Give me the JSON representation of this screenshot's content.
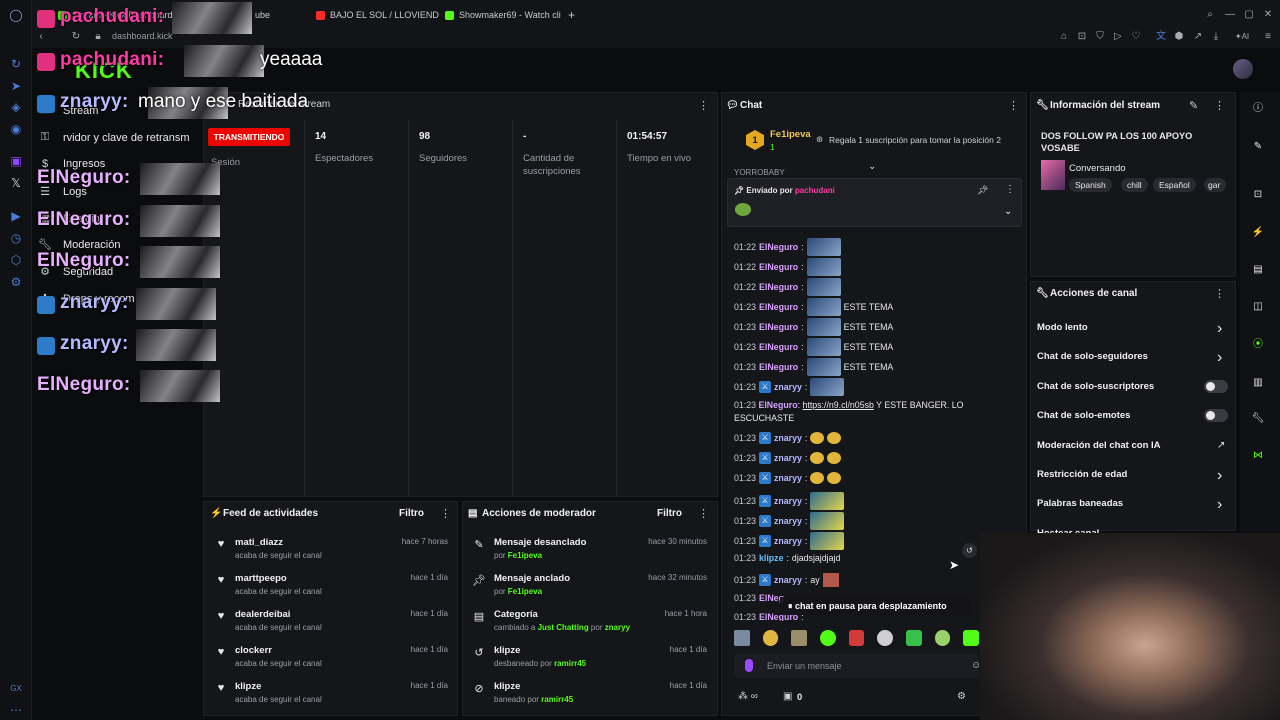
{
  "browser": {
    "tabs": [
      {
        "label": "Stream - Kick Dashboard",
        "color": "#53fc18"
      },
      {
        "label": "ube",
        "color": "#888888"
      },
      {
        "label": "BAJO EL SOL / LLOVIEND",
        "color": "#ff2a2a"
      },
      {
        "label": "Showmaker69 - Watch cli",
        "color": "#53fc18"
      }
    ],
    "address": "dashboard.kick"
  },
  "kick": {
    "logo": "KICK"
  },
  "nav": [
    {
      "icon": "money-icon",
      "label": "Ingresos"
    },
    {
      "icon": "logs-icon",
      "label": "Logs"
    },
    {
      "icon": "studio-icon",
      "label": "Estudio"
    },
    {
      "icon": "wrench-icon",
      "label": "Moderación"
    },
    {
      "icon": "gear-icon",
      "label": "Seguridad"
    },
    {
      "icon": "drops-icon",
      "label": "Drops y recom"
    }
  ],
  "nav_partial": {
    "stream": "Stream",
    "server_key": "rvidor y clave de retransm"
  },
  "session": {
    "badge": "TRANSMITIENDO",
    "label": "Sesión",
    "stats": [
      {
        "value": "14",
        "label": "Espectadores"
      },
      {
        "value": "98",
        "label": "Seguidores"
      },
      {
        "value": "-",
        "label": "Cantidad de suscripciones"
      },
      {
        "value": "01:54:57",
        "label": "Tiempo en vivo"
      }
    ],
    "header_partial": "Resumen del stream"
  },
  "activity": {
    "title": "Feed de actividades",
    "filter": "Filtro",
    "items": [
      {
        "name": "mati_diazz",
        "sub": "acaba de seguir el canal",
        "time": "hace 7 horas"
      },
      {
        "name": "marttpeepo",
        "sub": "acaba de seguir el canal",
        "time": "hace 1 día"
      },
      {
        "name": "dealerdeibai",
        "sub": "acaba de seguir el canal",
        "time": "hace 1 día"
      },
      {
        "name": "clockerr",
        "sub": "acaba de seguir el canal",
        "time": "hace 1 día"
      },
      {
        "name": "klipze",
        "sub": "acaba de seguir el canal",
        "time": "hace 1 día"
      }
    ]
  },
  "modactions": {
    "title": "Acciones de moderador",
    "filter": "Filtro",
    "items": [
      {
        "icon": "unpin-icon",
        "title": "Mensaje desanclado",
        "sub_pre": "por ",
        "sub_user": "Fe1ipeva",
        "time": "hace 30 minutos"
      },
      {
        "icon": "pin-icon",
        "title": "Mensaje anclado",
        "sub_pre": "por ",
        "sub_user": "Fe1ipeva",
        "time": "hace 32 minutos"
      },
      {
        "icon": "category-icon",
        "title": "Categoría",
        "sub_pre": "cambiado a ",
        "sub_user": "Just Chatting",
        "sub_mid": " por ",
        "sub_user2": "znaryy",
        "time": "hace 1 hora"
      },
      {
        "icon": "undo-icon",
        "title": "klipze",
        "sub_pre": "desbaneado por ",
        "sub_user": "ramirr45",
        "time": "hace 1 día"
      },
      {
        "icon": "ban-icon",
        "title": "klipze",
        "sub_pre": "baneado por ",
        "sub_user": "ramirr45",
        "time": "hace 1 día"
      }
    ]
  },
  "chat": {
    "title": "Chat",
    "top_user": "Fe1ipeva",
    "top_count": "1",
    "gift_text": "Regala 1 suscripción para tomar la posición 2",
    "partial_line": "YORROBABY",
    "pinned_label": "Enviado por",
    "pinned_user": "pachudani",
    "lines": [
      {
        "time": "01:22",
        "user": "ElNeguro",
        "cls": "cu-e",
        "text": ""
      },
      {
        "time": "01:22",
        "user": "ElNeguro",
        "cls": "cu-e",
        "text": ""
      },
      {
        "time": "01:22",
        "user": "ElNeguro",
        "cls": "cu-e",
        "text": ""
      },
      {
        "time": "01:23",
        "user": "ElNeguro",
        "cls": "cu-e",
        "text": "ESTE TEMA"
      },
      {
        "time": "01:23",
        "user": "ElNeguro",
        "cls": "cu-e",
        "text": "ESTE TEMA"
      },
      {
        "time": "01:23",
        "user": "ElNeguro",
        "cls": "cu-e",
        "text": "ESTE TEMA"
      },
      {
        "time": "01:23",
        "user": "ElNeguro",
        "cls": "cu-e",
        "text": "ESTE TEMA"
      },
      {
        "time": "01:23",
        "user": "znaryy",
        "cls": "cu-n",
        "text": ""
      }
    ],
    "link_line": {
      "time": "01:23",
      "user": "ElNeguro",
      "link": "https://n9.cl/n05sb",
      "text": " Y ESTE BANGER. LO",
      "text2": "ESCUCHASTE"
    },
    "lines2": [
      {
        "time": "01:23",
        "user": "znaryy",
        "cls": "cu-n"
      },
      {
        "time": "01:23",
        "user": "znaryy",
        "cls": "cu-n"
      },
      {
        "time": "01:23",
        "user": "znaryy",
        "cls": "cu-n"
      },
      {
        "time": "01:23",
        "user": "znaryy",
        "cls": "cu-n"
      },
      {
        "time": "01:23",
        "user": "znaryy",
        "cls": "cu-n"
      },
      {
        "time": "01:23",
        "user": "znaryy",
        "cls": "cu-n"
      }
    ],
    "klipze_line": {
      "time": "01:23",
      "user": "klipze",
      "text": "djadsjajdjajd"
    },
    "znaryy_ay": {
      "time": "01:23",
      "user": "znaryy",
      "text": "ay"
    },
    "partial_a": {
      "time": "01:23",
      "user": "ElNeg"
    },
    "partial_b": {
      "time": "01:23",
      "user": "ElNeguro"
    },
    "paused": "chat en pausa para desplazamiento",
    "placeholder": "Enviar un mensaje",
    "count": "0"
  },
  "streaminfo": {
    "title": "Información del stream",
    "stream_title": "DOS FOLLOW PA LOS 100 APOYO VOSABE",
    "category": "Conversando",
    "tags": [
      "Spanish",
      "chill",
      "Español",
      "gar"
    ]
  },
  "channel_actions": {
    "title": "Acciones de canal",
    "rows": [
      {
        "label": "Modo lento",
        "kind": "chevron"
      },
      {
        "label": "Chat de solo-seguidores",
        "kind": "chevron"
      },
      {
        "label": "Chat de solo-suscriptores",
        "kind": "toggle"
      },
      {
        "label": "Chat de solo-emotes",
        "kind": "toggle"
      },
      {
        "label": "Moderación del chat con IA",
        "kind": "external"
      },
      {
        "label": "Restricción de edad",
        "kind": "chevron"
      },
      {
        "label": "Palabras baneadas",
        "kind": "chevron"
      },
      {
        "label": "Hostear canal",
        "kind": "none"
      }
    ]
  },
  "overlay": {
    "lines": [
      {
        "user": "pachudani:",
        "color": "#ff3aa5",
        "text": ""
      },
      {
        "user": "pachudani:",
        "color": "#ff3aa5",
        "text": "yeaaaa"
      },
      {
        "user": "znaryy:",
        "color": "#b5b9ff",
        "text": "mano y ese baitiada"
      },
      {
        "user": "ElNeguro:",
        "color": "#e6b0ff",
        "text": ""
      },
      {
        "user": "ElNeguro:",
        "color": "#e6b0ff",
        "text": ""
      },
      {
        "user": "ElNeguro:",
        "color": "#e6b0ff",
        "text": ""
      },
      {
        "user": "znaryy:",
        "color": "#b5b9ff",
        "text": ""
      },
      {
        "user": "znaryy:",
        "color": "#b5b9ff",
        "text": ""
      },
      {
        "user": "ElNeguro:",
        "color": "#e6b0ff",
        "text": ""
      }
    ]
  },
  "colors": {
    "accent": "#53fc18",
    "live": "#eb0400"
  }
}
